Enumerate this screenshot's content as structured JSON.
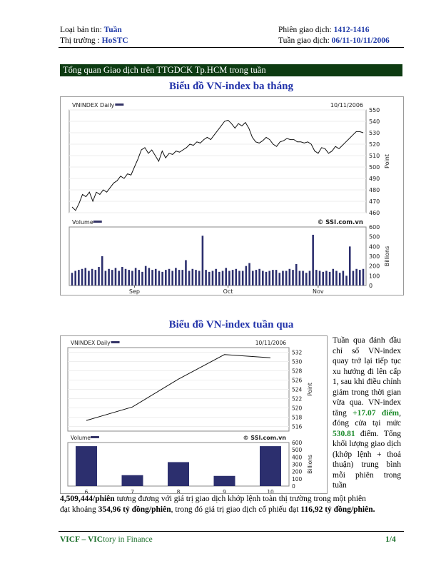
{
  "header": {
    "left1_label": "Loại bản tin:",
    "left1_value": "Tuần",
    "left2_label": "Thị trường :",
    "left2_value": "HoSTC",
    "right1_label": "Phiên giao dịch:",
    "right1_value": "1412-1416",
    "right2_label": "Tuần giao dịch:",
    "right2_value": "06/11-10/11/2006"
  },
  "banner": "Tổng quan Giao dịch trên TTGDCK Tp.HCM trong tuần",
  "chart1_heading": "Biểu đồ VN-index ba tháng",
  "chart2_heading": "Biểu đồ VN-index tuần qua",
  "chart_data": [
    {
      "type": "line",
      "legend": "VNINDEX Daily",
      "date_label": "10/11/2006",
      "watermark": "© SSI.com.vn",
      "ylabel": "Point",
      "ylim": [
        460,
        550
      ],
      "yticks": [
        "550",
        "540",
        "530",
        "520",
        "510",
        "500",
        "490",
        "480",
        "470",
        "460"
      ],
      "xtick_labels": [
        "Sep",
        "Oct",
        "Nov"
      ],
      "xtick_index": [
        18,
        45,
        71
      ],
      "values": [
        465,
        462,
        468,
        476,
        474,
        478,
        470,
        478,
        476,
        480,
        478,
        482,
        486,
        488,
        492,
        490,
        494,
        493,
        500,
        507,
        515,
        517,
        512,
        515,
        510,
        505,
        514,
        508,
        512,
        511,
        514,
        513,
        515,
        517,
        520,
        519,
        522,
        521,
        524,
        526,
        524,
        528,
        532,
        536,
        540,
        541,
        538,
        534,
        538,
        536,
        539,
        534,
        526,
        522,
        521,
        523,
        526,
        524,
        520,
        518,
        522,
        523,
        525,
        524,
        524,
        522,
        522,
        521,
        522,
        520,
        514,
        512,
        517,
        516,
        512,
        514,
        518,
        516,
        519,
        522,
        525,
        528,
        531,
        531,
        530
      ],
      "volume": {
        "legend": "Volume",
        "ylabel": "Billions",
        "ylim": [
          0,
          600
        ],
        "yticks": [
          "600",
          "500",
          "400",
          "300",
          "200",
          "100",
          "0"
        ],
        "values": [
          130,
          150,
          160,
          170,
          180,
          150,
          170,
          160,
          190,
          300,
          150,
          170,
          160,
          180,
          150,
          190,
          170,
          160,
          150,
          180,
          160,
          140,
          200,
          180,
          160,
          170,
          150,
          140,
          160,
          170,
          150,
          180,
          160,
          160,
          260,
          150,
          170,
          160,
          150,
          510,
          160,
          140,
          150,
          170,
          140,
          150,
          180,
          150,
          160,
          170,
          150,
          150,
          200,
          230,
          150,
          160,
          170,
          150,
          140,
          150,
          160,
          160,
          130,
          150,
          150,
          170,
          160,
          220,
          150,
          150,
          130,
          150,
          520,
          160,
          150,
          140,
          150,
          140,
          170,
          150,
          130,
          150,
          100,
          400,
          150,
          170,
          160,
          170
        ],
        "highlight_every": 6
      }
    },
    {
      "type": "line",
      "legend": "VNINDEX Daily",
      "date_label": "10/11/2006",
      "watermark": "© SSI.com.vn",
      "ylabel": "Point",
      "ylim": [
        515,
        533
      ],
      "yticks": [
        "532",
        "530",
        "528",
        "526",
        "524",
        "522",
        "520",
        "518",
        "516"
      ],
      "categories": [
        "6",
        "7",
        "8",
        "9",
        "10"
      ],
      "values": [
        517.3,
        520.2,
        526.2,
        531.5,
        530.81
      ],
      "volume": {
        "legend": "Volume",
        "ylabel": "Billions",
        "ylim": [
          0,
          600
        ],
        "yticks": [
          "600",
          "500",
          "400",
          "300",
          "200",
          "100",
          "0"
        ],
        "values": [
          550,
          150,
          330,
          140,
          550
        ]
      }
    }
  ],
  "paragraph": {
    "p1": "Tuần qua đánh đầu chỉ số VN-index quay trở lại tiếp tục xu hướng đi lên cấp 1, sau khi điều chỉnh giảm trong thời gian vừa qua. VN-index tăng",
    "v1": "+17.07 điểm",
    "p2": ", đóng cửa tại mức",
    "v2": "530.81",
    "p3": "điểm. Tổng khối lượng giao dịch (khớp lệnh + thoả thuận) trung bình mỗi phiên trong tuần",
    "line1_bold": "4,509,444/phiên",
    "line1_rest": " tương đương  với giá trị giao dịch khớp lệnh toàn thị trường trong một phiên",
    "line2_a": "đạt khoảng ",
    "line2_bold1": "354,96 tỷ đồng/phiên",
    "line2_b": ", trong đó giá trị giao dịch cổ phiếu đạt ",
    "line2_bold2": "116,92 tỷ đồng/phiên."
  },
  "footer": {
    "brand_a": "VICF – VIC",
    "brand_b": "tory in Finance",
    "page": "1/4"
  }
}
